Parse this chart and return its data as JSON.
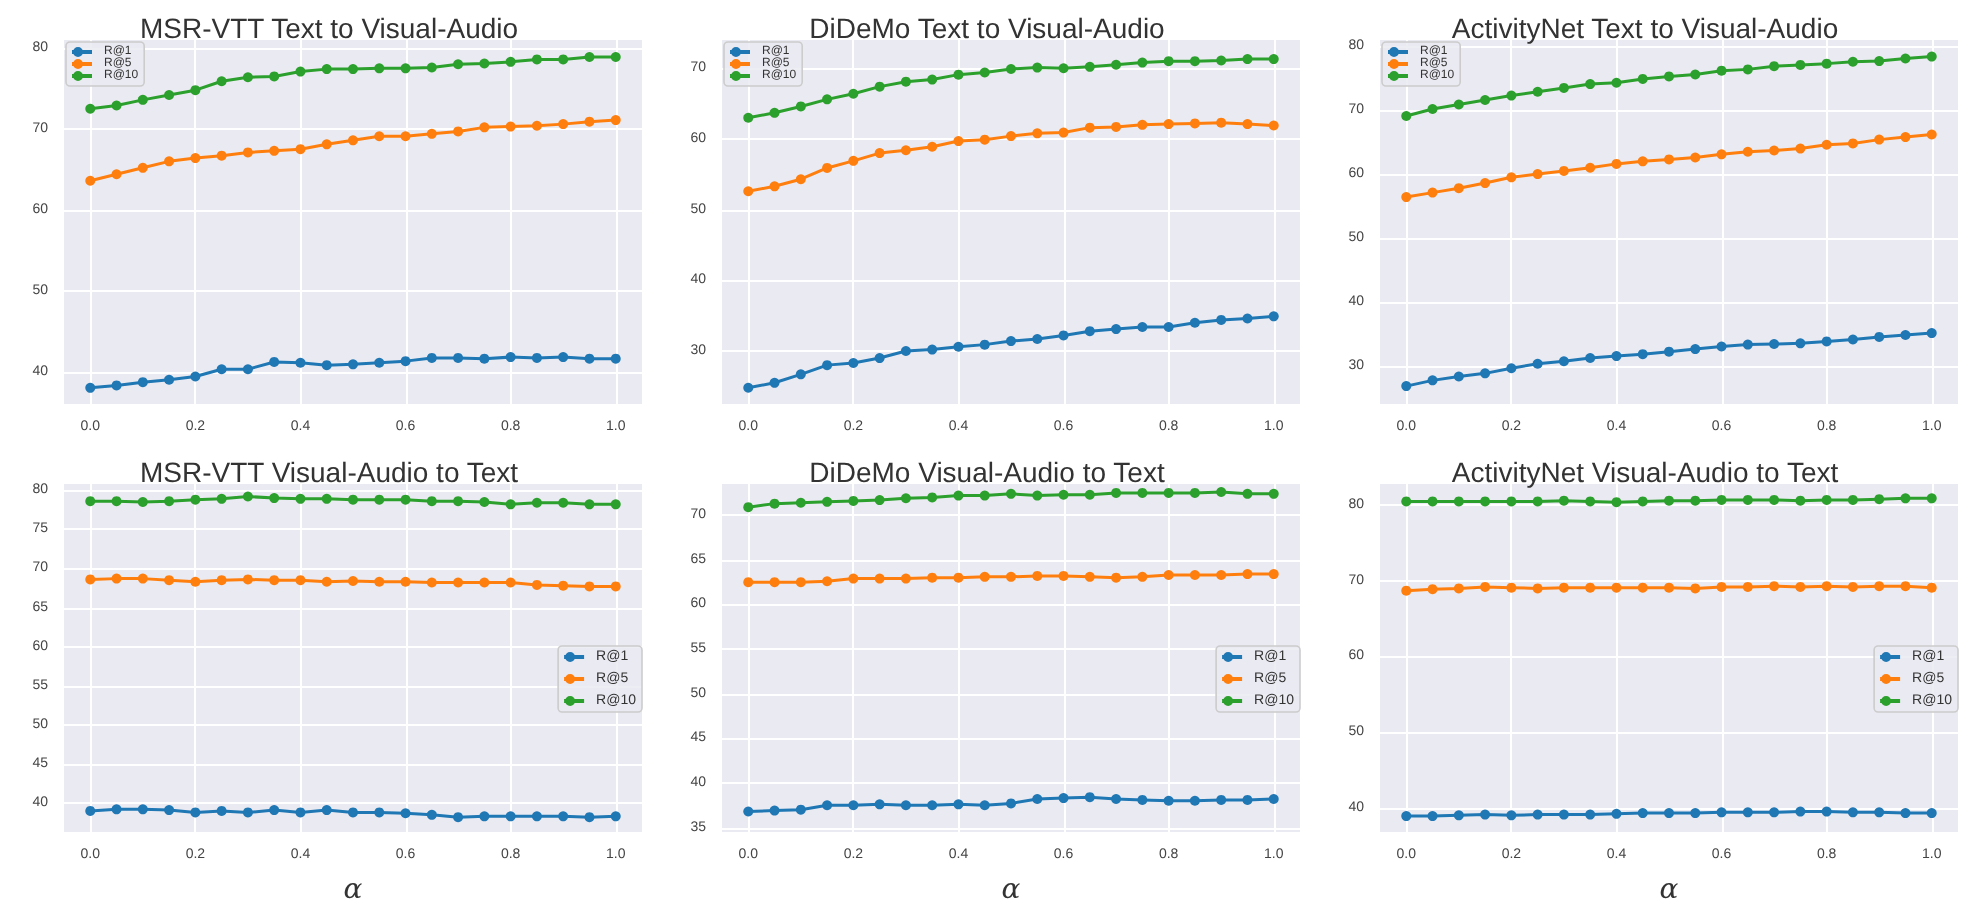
{
  "chart_data": [
    {
      "type": "line",
      "title": "MSR-VTT Text to Visual-Audio",
      "x": [
        0,
        0.05,
        0.1,
        0.15,
        0.2,
        0.25,
        0.3,
        0.35,
        0.4,
        0.45,
        0.5,
        0.55,
        0.6,
        0.65,
        0.7,
        0.75,
        0.8,
        0.85,
        0.9,
        0.95,
        1
      ],
      "xlim": [
        -0.05,
        1.05
      ],
      "xticks": [
        {
          "value": 0,
          "label": "0.0"
        },
        {
          "value": 0.2,
          "label": "0.2"
        },
        {
          "value": 0.4,
          "label": "0.4"
        },
        {
          "value": 0.6,
          "label": "0.6"
        },
        {
          "value": 0.8,
          "label": "0.8"
        },
        {
          "value": 1,
          "label": "1.0"
        }
      ],
      "ylim": [
        36,
        81
      ],
      "yticks": [
        40,
        50,
        60,
        70,
        80
      ],
      "grid": true,
      "legend": "top left",
      "marker": "circle",
      "line_style": "solid",
      "series": [
        {
          "name": "R@1",
          "color": "#1f77b4",
          "values": [
            38.0,
            38.3,
            38.7,
            39.0,
            39.4,
            40.3,
            40.3,
            41.2,
            41.1,
            40.8,
            40.9,
            41.1,
            41.3,
            41.7,
            41.7,
            41.6,
            41.8,
            41.7,
            41.8,
            41.6,
            41.6
          ]
        },
        {
          "name": "R@5",
          "color": "#ff7f0e",
          "values": [
            63.6,
            64.4,
            65.2,
            66.0,
            66.4,
            66.7,
            67.1,
            67.3,
            67.5,
            68.1,
            68.6,
            69.1,
            69.1,
            69.4,
            69.7,
            70.2,
            70.3,
            70.4,
            70.6,
            70.9,
            71.1
          ]
        },
        {
          "name": "R@10",
          "color": "#2ca02c",
          "values": [
            72.5,
            72.9,
            73.6,
            74.2,
            74.8,
            75.9,
            76.4,
            76.5,
            77.1,
            77.4,
            77.4,
            77.5,
            77.5,
            77.6,
            78.0,
            78.1,
            78.3,
            78.6,
            78.6,
            78.9,
            78.9
          ]
        }
      ]
    },
    {
      "type": "line",
      "title": "DiDeMo Text to Visual-Audio",
      "x": [
        0,
        0.05,
        0.1,
        0.15,
        0.2,
        0.25,
        0.3,
        0.35,
        0.4,
        0.45,
        0.5,
        0.55,
        0.6,
        0.65,
        0.7,
        0.75,
        0.8,
        0.85,
        0.9,
        0.95,
        1
      ],
      "xlim": [
        -0.05,
        1.05
      ],
      "xticks": [
        {
          "value": 0,
          "label": "0.0"
        },
        {
          "value": 0.2,
          "label": "0.2"
        },
        {
          "value": 0.4,
          "label": "0.4"
        },
        {
          "value": 0.6,
          "label": "0.6"
        },
        {
          "value": 0.8,
          "label": "0.8"
        },
        {
          "value": 1,
          "label": "1.0"
        }
      ],
      "ylim": [
        22.5,
        74
      ],
      "yticks": [
        30,
        40,
        50,
        60,
        70
      ],
      "grid": true,
      "legend": "top left",
      "marker": "circle",
      "line_style": "solid",
      "series": [
        {
          "name": "R@1",
          "color": "#1f77b4",
          "values": [
            24.8,
            25.5,
            26.7,
            28.0,
            28.3,
            29.0,
            30.0,
            30.2,
            30.6,
            30.9,
            31.4,
            31.7,
            32.2,
            32.8,
            33.1,
            33.4,
            33.4,
            34.0,
            34.4,
            34.6,
            34.9
          ]
        },
        {
          "name": "R@5",
          "color": "#ff7f0e",
          "values": [
            52.6,
            53.3,
            54.3,
            55.9,
            56.9,
            58.0,
            58.4,
            58.9,
            59.7,
            59.9,
            60.4,
            60.8,
            60.9,
            61.6,
            61.7,
            62.0,
            62.1,
            62.2,
            62.3,
            62.1,
            61.9
          ]
        },
        {
          "name": "R@10",
          "color": "#2ca02c",
          "values": [
            63.0,
            63.7,
            64.6,
            65.6,
            66.4,
            67.4,
            68.1,
            68.4,
            69.1,
            69.4,
            69.9,
            70.1,
            70.0,
            70.2,
            70.5,
            70.8,
            71.0,
            71.0,
            71.1,
            71.3,
            71.3
          ]
        }
      ]
    },
    {
      "type": "line",
      "title": "ActivityNet Text to Visual-Audio",
      "x": [
        0,
        0.05,
        0.1,
        0.15,
        0.2,
        0.25,
        0.3,
        0.35,
        0.4,
        0.45,
        0.5,
        0.55,
        0.6,
        0.65,
        0.7,
        0.75,
        0.8,
        0.85,
        0.9,
        0.95,
        1
      ],
      "xlim": [
        -0.05,
        1.05
      ],
      "xticks": [
        {
          "value": 0,
          "label": "0.0"
        },
        {
          "value": 0.2,
          "label": "0.2"
        },
        {
          "value": 0.4,
          "label": "0.4"
        },
        {
          "value": 0.6,
          "label": "0.6"
        },
        {
          "value": 0.8,
          "label": "0.8"
        },
        {
          "value": 1,
          "label": "1.0"
        }
      ],
      "ylim": [
        24,
        81
      ],
      "yticks": [
        30,
        40,
        50,
        60,
        70,
        80
      ],
      "grid": true,
      "legend": "top left",
      "marker": "circle",
      "line_style": "solid",
      "series": [
        {
          "name": "R@1",
          "color": "#1f77b4",
          "values": [
            26.8,
            27.7,
            28.3,
            28.8,
            29.6,
            30.3,
            30.7,
            31.2,
            31.5,
            31.8,
            32.2,
            32.6,
            33.0,
            33.3,
            33.4,
            33.5,
            33.8,
            34.1,
            34.5,
            34.8,
            35.1
          ]
        },
        {
          "name": "R@5",
          "color": "#ff7f0e",
          "values": [
            56.4,
            57.1,
            57.8,
            58.6,
            59.5,
            60.0,
            60.5,
            61.0,
            61.6,
            62.0,
            62.3,
            62.6,
            63.1,
            63.5,
            63.7,
            64.0,
            64.6,
            64.8,
            65.4,
            65.8,
            66.2
          ]
        },
        {
          "name": "R@10",
          "color": "#2ca02c",
          "values": [
            69.1,
            70.2,
            70.9,
            71.6,
            72.3,
            72.9,
            73.5,
            74.1,
            74.3,
            74.9,
            75.3,
            75.6,
            76.2,
            76.4,
            76.9,
            77.1,
            77.3,
            77.6,
            77.7,
            78.1,
            78.4
          ]
        }
      ]
    },
    {
      "type": "line",
      "title": "MSR-VTT Visual-Audio to Text",
      "xlabel": "α",
      "x": [
        0,
        0.05,
        0.1,
        0.15,
        0.2,
        0.25,
        0.3,
        0.35,
        0.4,
        0.45,
        0.5,
        0.55,
        0.6,
        0.65,
        0.7,
        0.75,
        0.8,
        0.85,
        0.9,
        0.95,
        1
      ],
      "xlim": [
        -0.05,
        1.05
      ],
      "xticks": [
        {
          "value": 0,
          "label": "0.0"
        },
        {
          "value": 0.2,
          "label": "0.2"
        },
        {
          "value": 0.4,
          "label": "0.4"
        },
        {
          "value": 0.6,
          "label": "0.6"
        },
        {
          "value": 0.8,
          "label": "0.8"
        },
        {
          "value": 1,
          "label": "1.0"
        }
      ],
      "ylim": [
        36.3,
        80.8
      ],
      "yticks": [
        40,
        45,
        50,
        55,
        60,
        65,
        70,
        75,
        80
      ],
      "grid": true,
      "legend": "right",
      "marker": "circle",
      "line_style": "solid",
      "series": [
        {
          "name": "R@1",
          "color": "#1f77b4",
          "values": [
            39.0,
            39.2,
            39.2,
            39.1,
            38.8,
            39.0,
            38.8,
            39.1,
            38.8,
            39.1,
            38.8,
            38.8,
            38.7,
            38.5,
            38.2,
            38.3,
            38.3,
            38.3,
            38.3,
            38.2,
            38.3
          ]
        },
        {
          "name": "R@5",
          "color": "#ff7f0e",
          "values": [
            68.6,
            68.7,
            68.7,
            68.5,
            68.3,
            68.5,
            68.6,
            68.5,
            68.5,
            68.3,
            68.4,
            68.3,
            68.3,
            68.2,
            68.2,
            68.2,
            68.2,
            67.9,
            67.8,
            67.7,
            67.7
          ]
        },
        {
          "name": "R@10",
          "color": "#2ca02c",
          "values": [
            78.6,
            78.6,
            78.5,
            78.6,
            78.8,
            78.9,
            79.2,
            79.0,
            78.9,
            78.9,
            78.8,
            78.8,
            78.8,
            78.6,
            78.6,
            78.5,
            78.2,
            78.4,
            78.4,
            78.2,
            78.2
          ]
        }
      ]
    },
    {
      "type": "line",
      "title": "DiDeMo Visual-Audio to Text",
      "xlabel": "α",
      "x": [
        0,
        0.05,
        0.1,
        0.15,
        0.2,
        0.25,
        0.3,
        0.35,
        0.4,
        0.45,
        0.5,
        0.55,
        0.6,
        0.65,
        0.7,
        0.75,
        0.8,
        0.85,
        0.9,
        0.95,
        1
      ],
      "xlim": [
        -0.05,
        1.05
      ],
      "xticks": [
        {
          "value": 0,
          "label": "0.0"
        },
        {
          "value": 0.2,
          "label": "0.2"
        },
        {
          "value": 0.4,
          "label": "0.4"
        },
        {
          "value": 0.6,
          "label": "0.6"
        },
        {
          "value": 0.8,
          "label": "0.8"
        },
        {
          "value": 1,
          "label": "1.0"
        }
      ],
      "ylim": [
        34.5,
        73.5
      ],
      "yticks": [
        35,
        40,
        45,
        50,
        55,
        60,
        65,
        70
      ],
      "grid": true,
      "legend": "right",
      "marker": "circle",
      "line_style": "solid",
      "series": [
        {
          "name": "R@1",
          "color": "#1f77b4",
          "values": [
            36.8,
            36.9,
            37.0,
            37.5,
            37.5,
            37.6,
            37.5,
            37.5,
            37.6,
            37.5,
            37.7,
            38.2,
            38.3,
            38.4,
            38.2,
            38.1,
            38.0,
            38.0,
            38.1,
            38.1,
            38.2
          ]
        },
        {
          "name": "R@5",
          "color": "#ff7f0e",
          "values": [
            62.5,
            62.5,
            62.5,
            62.6,
            62.9,
            62.9,
            62.9,
            63.0,
            63.0,
            63.1,
            63.1,
            63.2,
            63.2,
            63.1,
            63.0,
            63.1,
            63.3,
            63.3,
            63.3,
            63.4,
            63.4
          ]
        },
        {
          "name": "R@10",
          "color": "#2ca02c",
          "values": [
            70.9,
            71.3,
            71.4,
            71.5,
            71.6,
            71.7,
            71.9,
            72.0,
            72.2,
            72.2,
            72.4,
            72.2,
            72.3,
            72.3,
            72.5,
            72.5,
            72.5,
            72.5,
            72.6,
            72.4,
            72.4
          ]
        }
      ]
    },
    {
      "type": "line",
      "title": "ActivityNet Visual-Audio to Text",
      "xlabel": "α",
      "x": [
        0,
        0.05,
        0.1,
        0.15,
        0.2,
        0.25,
        0.3,
        0.35,
        0.4,
        0.45,
        0.5,
        0.55,
        0.6,
        0.65,
        0.7,
        0.75,
        0.8,
        0.85,
        0.9,
        0.95,
        1
      ],
      "xlim": [
        -0.05,
        1.05
      ],
      "xticks": [
        {
          "value": 0,
          "label": "0.0"
        },
        {
          "value": 0.2,
          "label": "0.2"
        },
        {
          "value": 0.4,
          "label": "0.4"
        },
        {
          "value": 0.6,
          "label": "0.6"
        },
        {
          "value": 0.8,
          "label": "0.8"
        },
        {
          "value": 1,
          "label": "1.0"
        }
      ],
      "ylim": [
        36.8,
        82.8
      ],
      "yticks": [
        40,
        50,
        60,
        70,
        80
      ],
      "grid": true,
      "legend": "right",
      "marker": "circle",
      "line_style": "solid",
      "series": [
        {
          "name": "R@1",
          "color": "#1f77b4",
          "values": [
            38.9,
            38.9,
            39.0,
            39.1,
            39.0,
            39.1,
            39.1,
            39.1,
            39.2,
            39.3,
            39.3,
            39.3,
            39.4,
            39.4,
            39.4,
            39.5,
            39.5,
            39.4,
            39.4,
            39.3,
            39.3
          ]
        },
        {
          "name": "R@5",
          "color": "#ff7f0e",
          "values": [
            68.7,
            68.9,
            69.0,
            69.2,
            69.1,
            69.0,
            69.1,
            69.1,
            69.1,
            69.1,
            69.1,
            69.0,
            69.2,
            69.2,
            69.3,
            69.2,
            69.3,
            69.2,
            69.3,
            69.3,
            69.1
          ]
        },
        {
          "name": "R@10",
          "color": "#2ca02c",
          "values": [
            80.5,
            80.5,
            80.5,
            80.5,
            80.5,
            80.5,
            80.6,
            80.5,
            80.4,
            80.5,
            80.6,
            80.6,
            80.7,
            80.7,
            80.7,
            80.6,
            80.7,
            80.7,
            80.8,
            80.9,
            80.9
          ]
        }
      ]
    }
  ]
}
